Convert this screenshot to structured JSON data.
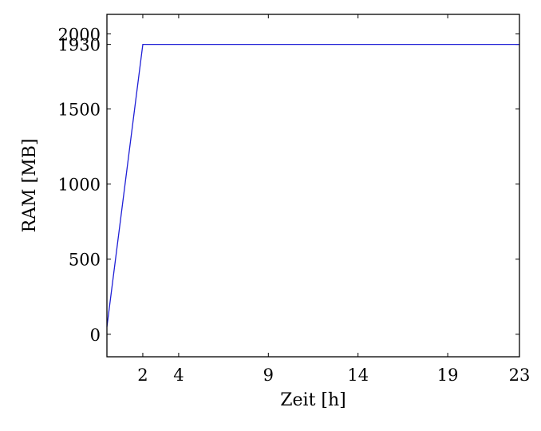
{
  "chart_data": {
    "type": "line",
    "title": "",
    "xlabel": "Zeit [h]",
    "ylabel": "RAM [MB]",
    "xlim": [
      0,
      23
    ],
    "ylim": [
      -150,
      2130
    ],
    "x_ticks": [
      2,
      4,
      9,
      14,
      19,
      23
    ],
    "x_tick_labels": [
      "2",
      "4",
      "9",
      "14",
      "19",
      "23"
    ],
    "y_ticks": [
      0,
      500,
      1000,
      1500,
      1930,
      2000
    ],
    "y_tick_labels": [
      "0",
      "500",
      "1000",
      "1500",
      "1930",
      "2000"
    ],
    "grid": false,
    "legend": "none",
    "series": [
      {
        "color": "#1f1fd6",
        "x": [
          0,
          2,
          23
        ],
        "y": [
          50,
          1930,
          1930
        ]
      }
    ]
  }
}
